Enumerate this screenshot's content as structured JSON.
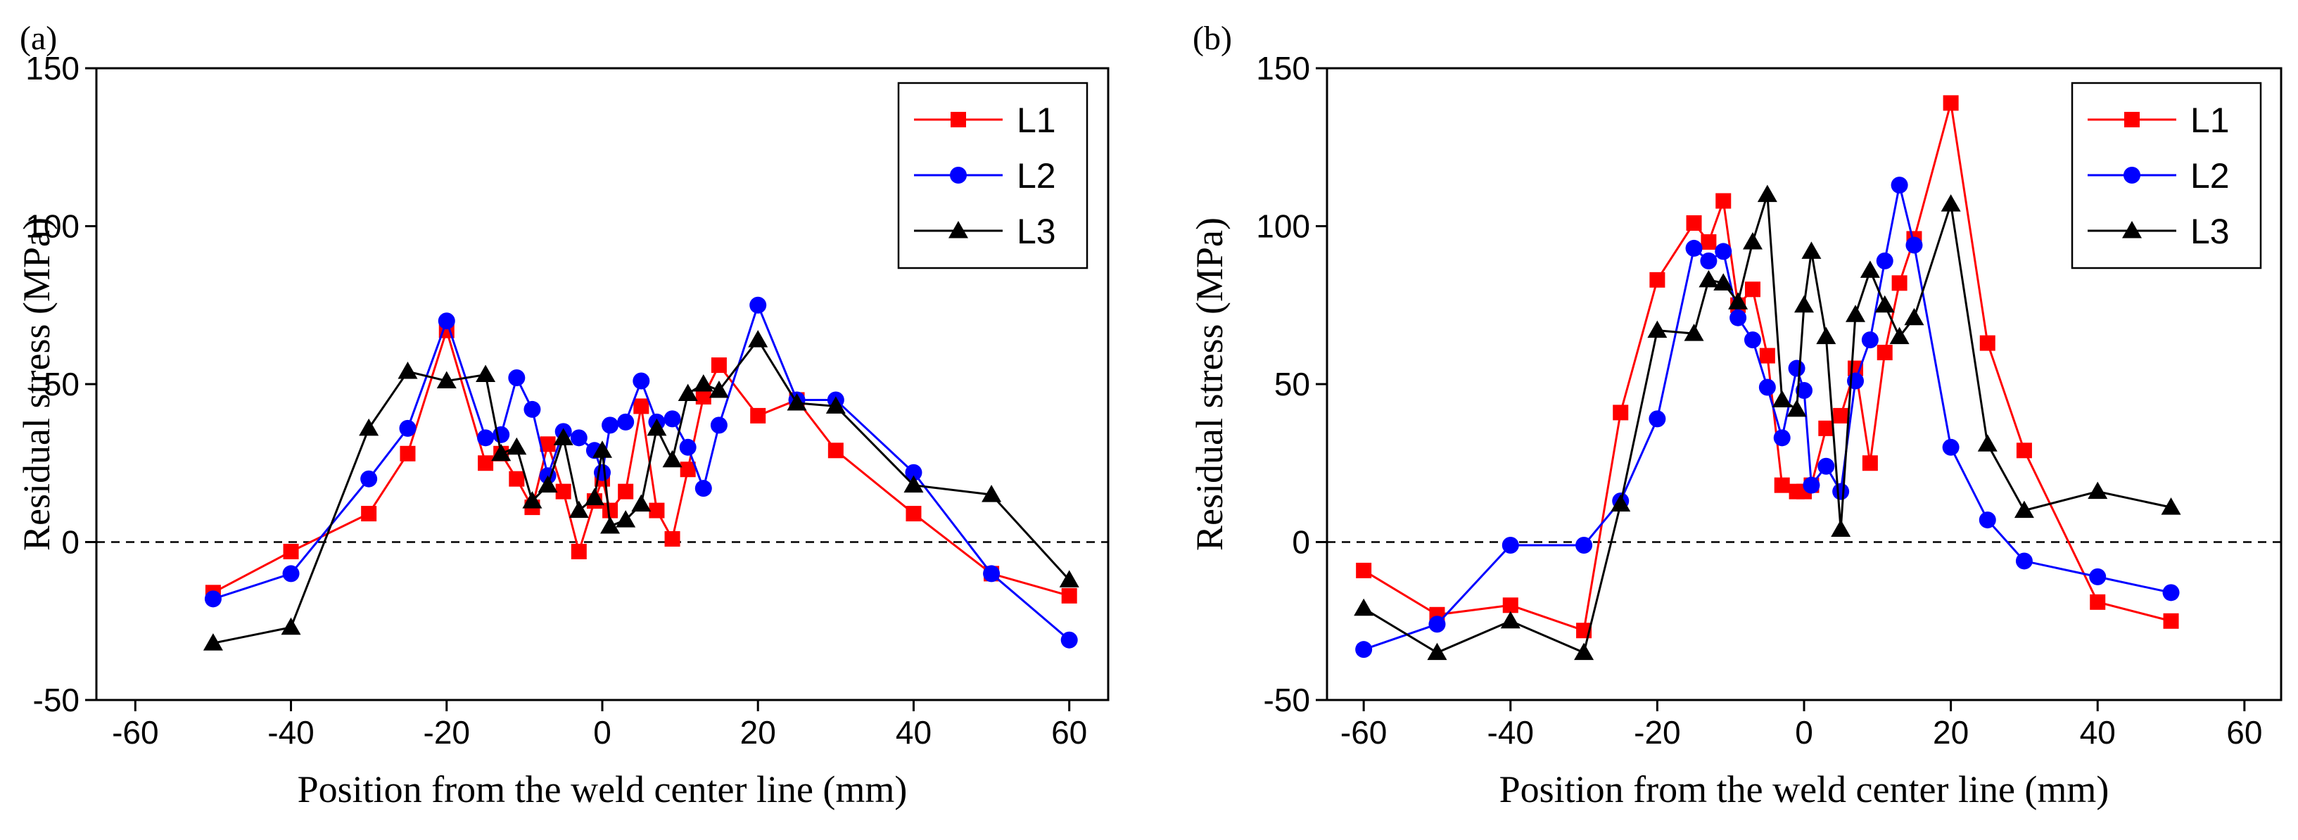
{
  "chart_data": [
    {
      "panel": "(a)",
      "type": "line",
      "xlabel": "Position from the weld center line (mm)",
      "ylabel": "Residual stress (MPa)",
      "xlim": [
        -65,
        65
      ],
      "ylim": [
        -50,
        150
      ],
      "x_ticks": [
        -60,
        -40,
        -20,
        0,
        20,
        40,
        60
      ],
      "y_ticks": [
        -50,
        0,
        50,
        100,
        150
      ],
      "zero_line": true,
      "legend_position": "top-right",
      "series": [
        {
          "name": "L1",
          "color": "#ff0000",
          "marker": "square",
          "x": [
            -50,
            -40,
            -30,
            -25,
            -20,
            -15,
            -13,
            -11,
            -9,
            -7,
            -5,
            -3,
            -1,
            0,
            1,
            3,
            5,
            7,
            9,
            11,
            13,
            15,
            20,
            25,
            30,
            40,
            50,
            60
          ],
          "y": [
            -16,
            -3,
            9,
            28,
            67,
            25,
            28,
            20,
            11,
            31,
            16,
            -3,
            13,
            20,
            10,
            16,
            43,
            10,
            1,
            23,
            46,
            56,
            40,
            45,
            29,
            9,
            -10,
            -17
          ]
        },
        {
          "name": "L2",
          "color": "#0000ff",
          "marker": "circle",
          "x": [
            -50,
            -40,
            -30,
            -25,
            -20,
            -15,
            -13,
            -11,
            -9,
            -7,
            -5,
            -3,
            -1,
            0,
            1,
            3,
            5,
            7,
            9,
            11,
            13,
            15,
            20,
            25,
            30,
            40,
            50,
            60
          ],
          "y": [
            -18,
            -10,
            20,
            36,
            70,
            33,
            34,
            52,
            42,
            21,
            35,
            33,
            29,
            22,
            37,
            38,
            51,
            38,
            39,
            30,
            17,
            37,
            75,
            45,
            45,
            22,
            -10,
            -31
          ]
        },
        {
          "name": "L3",
          "color": "#000000",
          "marker": "triangle",
          "x": [
            -50,
            -40,
            -30,
            -25,
            -20,
            -15,
            -13,
            -11,
            -9,
            -7,
            -5,
            -3,
            -1,
            0,
            1,
            3,
            5,
            7,
            9,
            11,
            13,
            15,
            20,
            25,
            30,
            40,
            50,
            60
          ],
          "y": [
            -32,
            -27,
            36,
            54,
            51,
            53,
            28,
            30,
            13,
            18,
            33,
            10,
            14,
            29,
            5,
            7,
            12,
            36,
            26,
            47,
            50,
            48,
            64,
            44,
            43,
            18,
            15,
            -12
          ]
        }
      ]
    },
    {
      "panel": "(b)",
      "type": "line",
      "xlabel": "Position from the weld center line (mm)",
      "ylabel": "Residual stress (MPa)",
      "xlim": [
        -65,
        65
      ],
      "ylim": [
        -50,
        150
      ],
      "x_ticks": [
        -60,
        -40,
        -20,
        0,
        20,
        40,
        60
      ],
      "y_ticks": [
        -50,
        0,
        50,
        100,
        150
      ],
      "zero_line": true,
      "legend_position": "top-right",
      "series": [
        {
          "name": "L1",
          "color": "#ff0000",
          "marker": "square",
          "x": [
            -60,
            -50,
            -40,
            -30,
            -25,
            -20,
            -15,
            -13,
            -11,
            -9,
            -7,
            -5,
            -3,
            -1,
            0,
            1,
            3,
            5,
            7,
            9,
            11,
            13,
            15,
            20,
            25,
            30,
            40,
            50
          ],
          "y": [
            -9,
            -23,
            -20,
            -28,
            41,
            83,
            101,
            95,
            108,
            75,
            80,
            59,
            18,
            16,
            16,
            18,
            36,
            40,
            55,
            25,
            60,
            82,
            96,
            139,
            63,
            29,
            -19,
            -25
          ]
        },
        {
          "name": "L2",
          "color": "#0000ff",
          "marker": "circle",
          "x": [
            -60,
            -50,
            -40,
            -30,
            -25,
            -20,
            -15,
            -13,
            -11,
            -9,
            -7,
            -5,
            -3,
            -1,
            0,
            1,
            3,
            5,
            7,
            9,
            11,
            13,
            15,
            20,
            25,
            30,
            40,
            50
          ],
          "y": [
            -34,
            -26,
            -1,
            -1,
            13,
            39,
            93,
            89,
            92,
            71,
            64,
            49,
            33,
            55,
            48,
            18,
            24,
            16,
            51,
            64,
            89,
            113,
            94,
            30,
            7,
            -6,
            -11,
            -16
          ]
        },
        {
          "name": "L3",
          "color": "#000000",
          "marker": "triangle",
          "x": [
            -60,
            -50,
            -40,
            -30,
            -25,
            -20,
            -15,
            -13,
            -11,
            -9,
            -7,
            -5,
            -3,
            -1,
            0,
            1,
            3,
            5,
            7,
            9,
            11,
            13,
            15,
            20,
            25,
            30,
            40,
            50
          ],
          "y": [
            -21,
            -35,
            -25,
            -35,
            12,
            67,
            66,
            83,
            82,
            76,
            95,
            110,
            45,
            42,
            75,
            92,
            65,
            4,
            72,
            86,
            75,
            65,
            71,
            107,
            31,
            10,
            16,
            11
          ]
        }
      ]
    }
  ]
}
